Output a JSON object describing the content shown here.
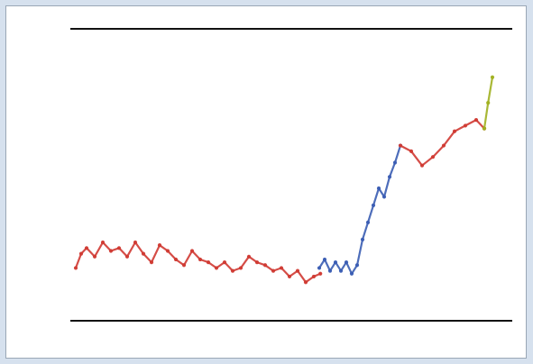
{
  "chart_data": {
    "type": "line",
    "xlabel": "",
    "ylabel": "",
    "xlim": [
      0,
      8
    ],
    "ylim": [
      0,
      10
    ],
    "x_ticks": [],
    "y_ticks": [],
    "grid": false,
    "legend": "none",
    "series": [
      {
        "color": "#d03a33",
        "values": [
          [
            0.1,
            1.6
          ],
          [
            0.2,
            2.1
          ],
          [
            0.3,
            2.3
          ],
          [
            0.45,
            2.0
          ],
          [
            0.6,
            2.5
          ],
          [
            0.75,
            2.2
          ],
          [
            0.9,
            2.3
          ],
          [
            1.05,
            2.0
          ],
          [
            1.2,
            2.5
          ],
          [
            1.35,
            2.1
          ],
          [
            1.5,
            1.8
          ],
          [
            1.65,
            2.4
          ],
          [
            1.8,
            2.2
          ],
          [
            1.95,
            1.9
          ],
          [
            2.1,
            1.7
          ],
          [
            2.25,
            2.2
          ],
          [
            2.4,
            1.9
          ],
          [
            2.55,
            1.8
          ],
          [
            2.7,
            1.6
          ],
          [
            2.85,
            1.8
          ],
          [
            3.0,
            1.5
          ],
          [
            3.15,
            1.6
          ],
          [
            3.3,
            2.0
          ],
          [
            3.45,
            1.8
          ],
          [
            3.6,
            1.7
          ],
          [
            3.75,
            1.5
          ],
          [
            3.9,
            1.6
          ],
          [
            4.05,
            1.3
          ],
          [
            4.2,
            1.5
          ],
          [
            4.35,
            1.1
          ],
          [
            4.5,
            1.3
          ],
          [
            4.62,
            1.4
          ]
        ]
      },
      {
        "color": "#3a5db3",
        "values": [
          [
            4.6,
            1.6
          ],
          [
            4.7,
            1.9
          ],
          [
            4.8,
            1.5
          ],
          [
            4.9,
            1.8
          ],
          [
            5.0,
            1.5
          ],
          [
            5.1,
            1.8
          ],
          [
            5.2,
            1.4
          ],
          [
            5.3,
            1.7
          ],
          [
            5.4,
            2.6
          ],
          [
            5.5,
            3.2
          ],
          [
            5.6,
            3.8
          ],
          [
            5.7,
            4.4
          ],
          [
            5.8,
            4.1
          ],
          [
            5.9,
            4.8
          ],
          [
            6.0,
            5.3
          ],
          [
            6.1,
            5.9
          ]
        ]
      },
      {
        "color": "#d03a33",
        "values": [
          [
            6.1,
            5.9
          ],
          [
            6.3,
            5.7
          ],
          [
            6.5,
            5.2
          ],
          [
            6.7,
            5.5
          ],
          [
            6.9,
            5.9
          ],
          [
            7.1,
            6.4
          ],
          [
            7.3,
            6.6
          ],
          [
            7.5,
            6.8
          ],
          [
            7.65,
            6.5
          ]
        ]
      },
      {
        "color": "#a0b020",
        "values": [
          [
            7.65,
            6.5
          ],
          [
            7.72,
            7.4
          ],
          [
            7.8,
            8.3
          ]
        ]
      }
    ]
  }
}
